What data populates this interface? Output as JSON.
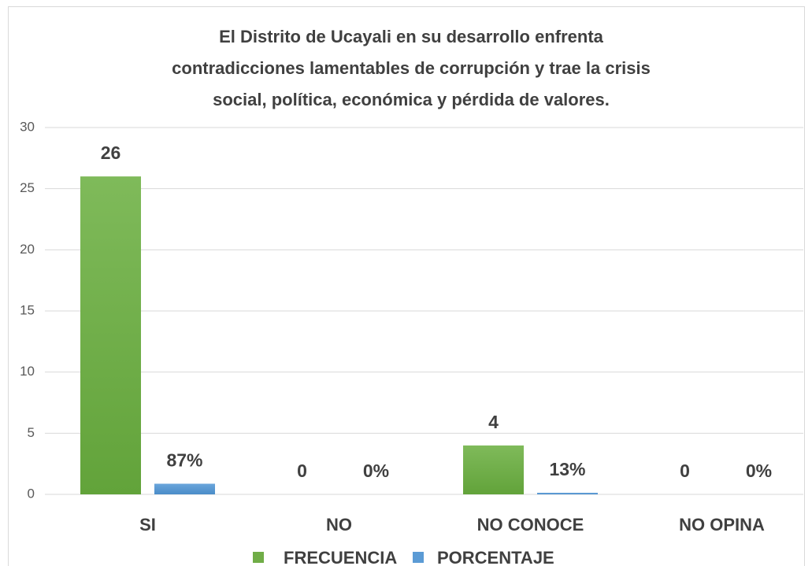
{
  "chart_data": {
    "type": "bar",
    "title": [
      "El Distrito de Ucayali en su desarrollo enfrenta",
      "contradicciones lamentables de corrupción y trae la crisis",
      "social, política, económica y pérdida de valores."
    ],
    "categories": [
      "SI",
      "NO",
      "NO CONOCE",
      "NO OPINA"
    ],
    "series": [
      {
        "name": "FRECUENCIA",
        "color": "#70ad47",
        "values": [
          26,
          0,
          4,
          0
        ]
      },
      {
        "name": "PORCENTAJE",
        "color": "#5b9bd5",
        "values": [
          0.87,
          0,
          0.13,
          0
        ],
        "value_labels": [
          "87%",
          "0%",
          "13%",
          "0%"
        ]
      }
    ],
    "ylim": [
      0,
      30
    ],
    "yticks": [
      0,
      5,
      10,
      15,
      20,
      25,
      30
    ],
    "grid": true,
    "legend": "bottom"
  }
}
